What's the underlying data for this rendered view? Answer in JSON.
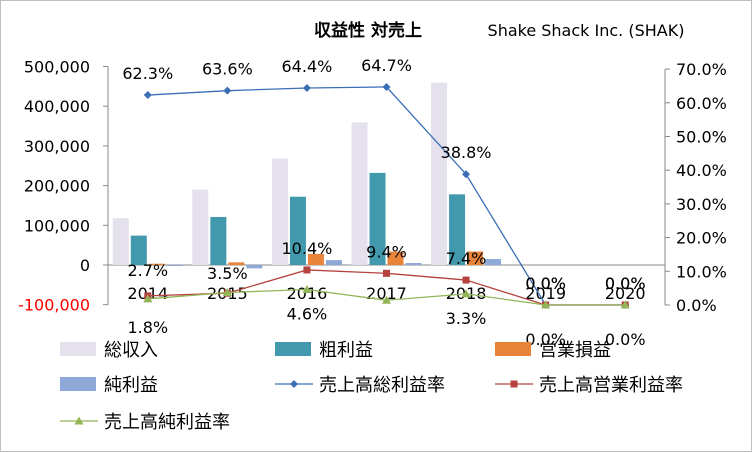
{
  "chart_data": {
    "type": "bar",
    "title": "収益性 対売上",
    "subtitle": "Shake Shack Inc. (SHAK)",
    "categories": [
      "2014",
      "2015",
      "2016",
      "2017",
      "2018",
      "2019",
      "2020"
    ],
    "y_left": {
      "min": -100000,
      "max": 500000,
      "step": 100000,
      "tick_labels": [
        "-100,000",
        "0",
        "100,000",
        "200,000",
        "300,000",
        "400,000",
        "500,000"
      ],
      "negative_color": "#ff0000"
    },
    "y_right": {
      "min": 0,
      "max": 0.7,
      "step": 0.1,
      "tick_labels": [
        "0.0%",
        "10.0%",
        "20.0%",
        "30.0%",
        "40.0%",
        "50.0%",
        "60.0%",
        "70.0%"
      ]
    },
    "bar_series": [
      {
        "name": "総収入",
        "color": "#e4e0ec",
        "values": [
          118000,
          190000,
          268000,
          359000,
          459000,
          null,
          null
        ]
      },
      {
        "name": "粗利益",
        "color": "#4298ac",
        "values": [
          74000,
          121000,
          172000,
          232000,
          178000,
          null,
          null
        ]
      },
      {
        "name": "営業損益",
        "color": "#e8833a",
        "values": [
          3200,
          6700,
          27900,
          33700,
          34000,
          null,
          null
        ]
      },
      {
        "name": "純利益",
        "color": "#8ea9d8",
        "values": [
          -2200,
          -8500,
          12300,
          5000,
          15000,
          null,
          null
        ]
      }
    ],
    "line_series": [
      {
        "name": "売上高総利益率",
        "color": "#3a6fb5",
        "marker": "diamond",
        "values": [
          0.623,
          0.636,
          0.644,
          0.647,
          0.388,
          0.0,
          0.0
        ],
        "labels": [
          "62.3%",
          "63.6%",
          "64.4%",
          "64.7%",
          "38.8%",
          "0.0%",
          "0.0%"
        ]
      },
      {
        "name": "売上高営業利益率",
        "color": "#b5423f",
        "marker": "square",
        "values": [
          0.027,
          0.035,
          0.104,
          0.094,
          0.074,
          0.0,
          0.0
        ],
        "labels": [
          "2.7%",
          "3.5%",
          "10.4%",
          "9.4%",
          "7.4%",
          "0.0%",
          "0.0%"
        ]
      },
      {
        "name": "売上高純利益率",
        "color": "#92b556",
        "marker": "triangle",
        "values": [
          0.018,
          0.037,
          0.046,
          0.014,
          0.033,
          0.0,
          0.0
        ],
        "labels": [
          "1.8%",
          "",
          "4.6%",
          "",
          "3.3%",
          "0.0%",
          "0.0%"
        ]
      }
    ]
  }
}
